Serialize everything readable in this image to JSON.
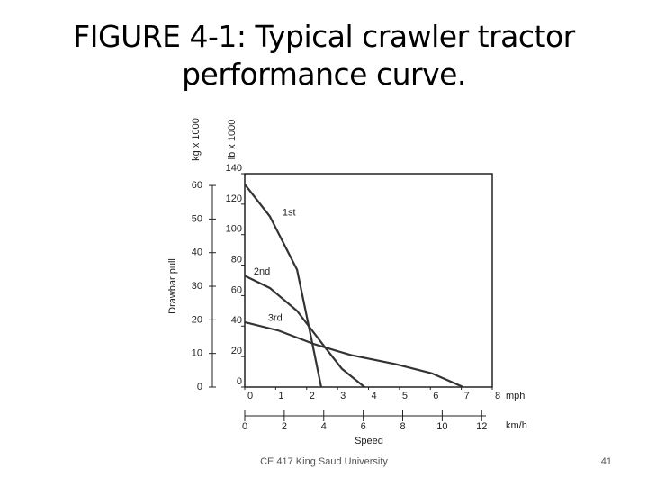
{
  "slide": {
    "title": "FIGURE 4-1: Typical crawler tractor performance curve.",
    "footer": "CE 417 King Saud University",
    "page_number": "41"
  },
  "chart_data": {
    "type": "line",
    "x_label": "Speed",
    "y_label": "Drawbar pull",
    "x_unit": "mph",
    "x2_unit": "km/h",
    "y_unit": "lb x 1000",
    "y2_unit": "kg x 1000",
    "xlim": [
      0,
      8
    ],
    "xticks": [
      0,
      1,
      2,
      3,
      4,
      5,
      6,
      7,
      8
    ],
    "x2lim": [
      0,
      12.9
    ],
    "x2ticks": [
      0,
      2,
      4,
      6,
      8,
      10,
      12
    ],
    "ylim": [
      0,
      140
    ],
    "yticks": [
      0,
      20,
      40,
      60,
      80,
      100,
      120,
      140
    ],
    "y2lim": [
      0,
      63.5
    ],
    "y2ticks": [
      0,
      10,
      20,
      30,
      40,
      50,
      60
    ],
    "series": [
      {
        "name": "1st",
        "color": "#333333",
        "x": [
          0,
          0.81,
          1.69,
          2.12,
          2.47
        ],
        "values": [
          133,
          112,
          77,
          35,
          0
        ]
      },
      {
        "name": "2nd",
        "color": "#333333",
        "x": [
          0,
          0.81,
          1.69,
          2.56,
          3.14,
          3.87
        ],
        "values": [
          73,
          65,
          50,
          27,
          12,
          0
        ]
      },
      {
        "name": "3rd",
        "color": "#333333",
        "x": [
          0,
          1.1,
          2.27,
          3.43,
          4.88,
          6.05,
          7.06
        ],
        "values": [
          42.6,
          37,
          28,
          21,
          15,
          9,
          0
        ]
      }
    ]
  }
}
